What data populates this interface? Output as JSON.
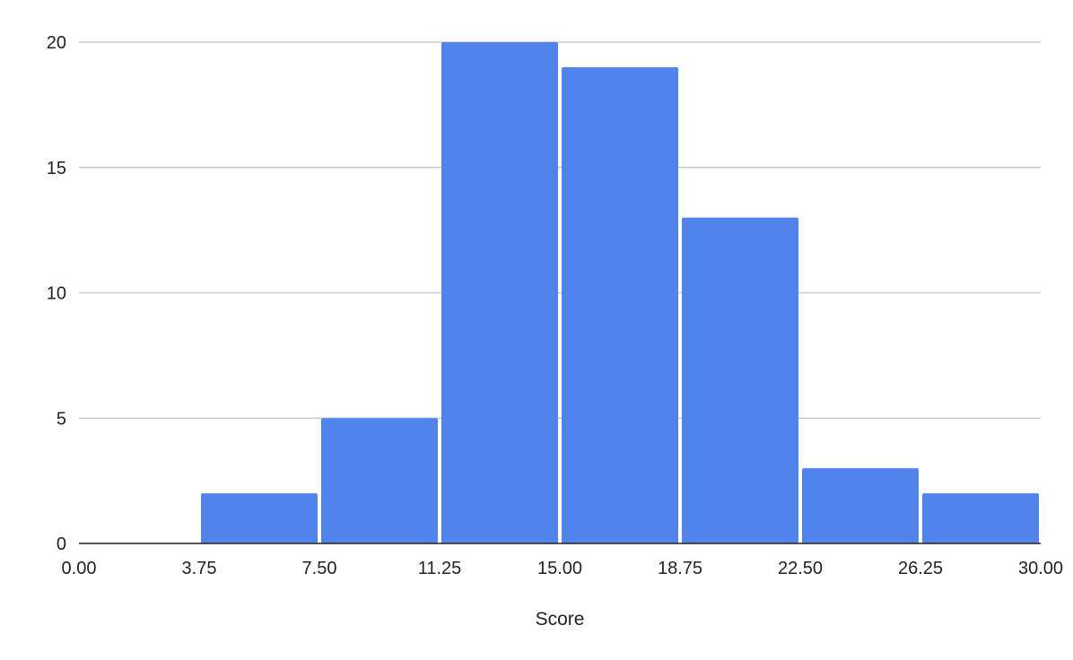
{
  "chart_data": {
    "type": "bar",
    "subtype": "histogram",
    "title": "",
    "xlabel": "Score",
    "ylabel": "",
    "bins": [
      {
        "start": 0.0,
        "end": 3.75,
        "count": 0
      },
      {
        "start": 3.75,
        "end": 7.5,
        "count": 2
      },
      {
        "start": 7.5,
        "end": 11.25,
        "count": 5
      },
      {
        "start": 11.25,
        "end": 15.0,
        "count": 20
      },
      {
        "start": 15.0,
        "end": 18.75,
        "count": 19
      },
      {
        "start": 18.75,
        "end": 22.5,
        "count": 13
      },
      {
        "start": 22.5,
        "end": 26.25,
        "count": 3
      },
      {
        "start": 26.25,
        "end": 30.0,
        "count": 2
      }
    ],
    "xlim": [
      0,
      30
    ],
    "ylim": [
      0,
      20
    ],
    "x_ticks": [
      "0.00",
      "3.75",
      "7.50",
      "11.25",
      "15.00",
      "18.75",
      "22.50",
      "26.25",
      "30.00"
    ],
    "y_ticks": [
      "0",
      "5",
      "10",
      "15",
      "20"
    ],
    "grid": "horizontal",
    "legend": "none",
    "colors": {
      "bar": "#5084ec",
      "gridline": "#cccccc",
      "baseline": "#222222",
      "text": "#222222"
    }
  }
}
